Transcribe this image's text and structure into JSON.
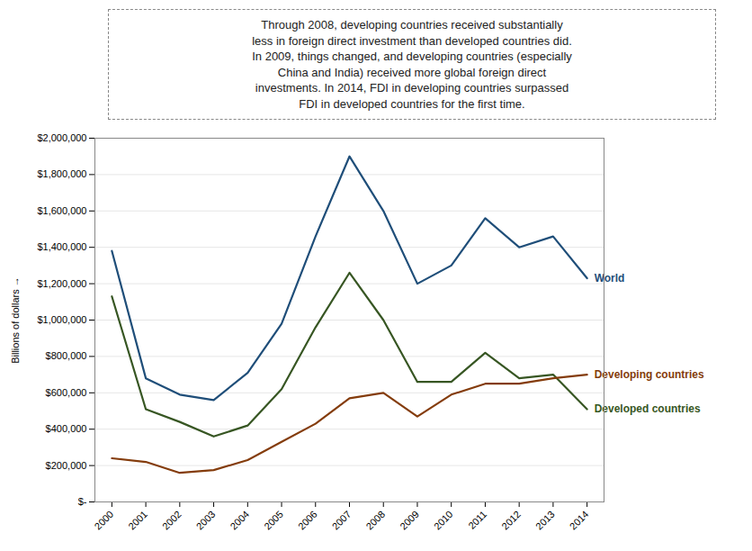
{
  "chart_data": {
    "type": "line",
    "annotation": "Through 2008, developing countries received substantially\nless in foreign direct investment than developed countries did.\nIn 2009, things changed, and developing countries (especially\nChina and India) received more global foreign direct\ninvestments. In 2014, FDI in developing countries surpassed\nFDI in developed countries for the first time.",
    "y_label": "Billions of dollars",
    "x": [
      2000,
      2001,
      2002,
      2003,
      2004,
      2005,
      2006,
      2007,
      2008,
      2009,
      2010,
      2011,
      2012,
      2013,
      2014
    ],
    "series": [
      {
        "name": "World",
        "color": "#1F4E79",
        "values": [
          1380000,
          680000,
          590000,
          560000,
          710000,
          980000,
          1460000,
          1900000,
          1600000,
          1200000,
          1300000,
          1560000,
          1400000,
          1460000,
          1230000
        ]
      },
      {
        "name": "Developed countries",
        "color": "#375623",
        "values": [
          1130000,
          510000,
          440000,
          360000,
          420000,
          620000,
          960000,
          1260000,
          1000000,
          660000,
          660000,
          820000,
          680000,
          700000,
          510000
        ]
      },
      {
        "name": "Developing countries",
        "color": "#843C0C",
        "values": [
          240000,
          220000,
          160000,
          175000,
          230000,
          330000,
          430000,
          570000,
          600000,
          470000,
          590000,
          650000,
          650000,
          680000,
          700000
        ]
      }
    ],
    "xlim": [
      1999.5,
      2014.5
    ],
    "xticks": [
      2000,
      2001,
      2002,
      2003,
      2004,
      2005,
      2006,
      2007,
      2008,
      2009,
      2010,
      2011,
      2012,
      2013,
      2014
    ],
    "ylim": [
      0,
      2000000
    ],
    "yticks": [
      {
        "value": 0,
        "label": "$-"
      },
      {
        "value": 200000,
        "label": "$200,000"
      },
      {
        "value": 400000,
        "label": "$400,000"
      },
      {
        "value": 600000,
        "label": "$600,000"
      },
      {
        "value": 800000,
        "label": "$800,000"
      },
      {
        "value": 1000000,
        "label": "$1,000,000"
      },
      {
        "value": 1200000,
        "label": "$1,200,000"
      },
      {
        "value": 1400000,
        "label": "$1,400,000"
      },
      {
        "value": 1600000,
        "label": "$1,600,000"
      },
      {
        "value": 1800000,
        "label": "$1,800,000"
      },
      {
        "value": 2000000,
        "label": "$2,000,000"
      }
    ],
    "grid": true
  }
}
